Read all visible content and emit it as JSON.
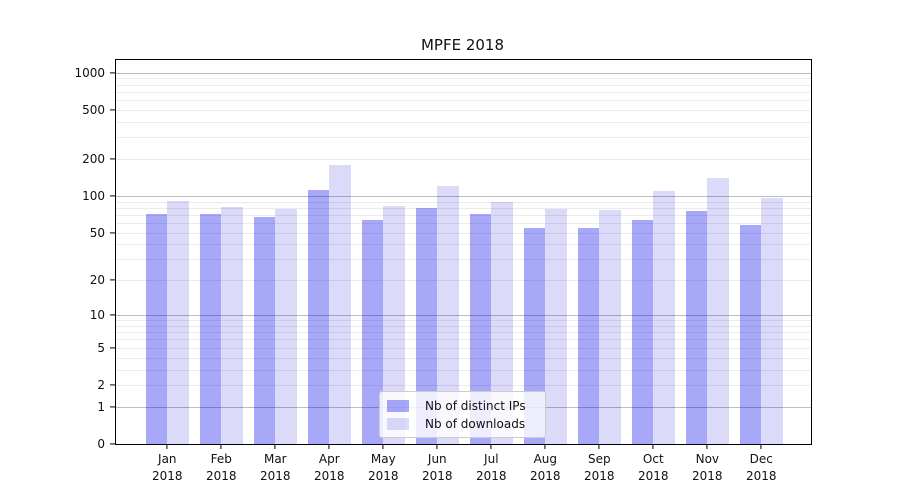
{
  "chart_data": {
    "type": "bar",
    "title": "MPFE 2018",
    "y_scale": "log1p",
    "y_ticks": [
      0,
      1,
      2,
      5,
      10,
      20,
      50,
      100,
      200,
      500,
      1000
    ],
    "ylim": [
      0,
      1300
    ],
    "grid": "both",
    "legend_position": "lower-center",
    "x_tick_year": "2018",
    "months": [
      "Jan",
      "Feb",
      "Mar",
      "Apr",
      "May",
      "Jun",
      "Jul",
      "Aug",
      "Sep",
      "Oct",
      "Nov",
      "Dec"
    ],
    "series": [
      {
        "name": "Nb of distinct IPs",
        "color": "rgba(0,0,235,0.34)",
        "values": [
          71,
          71,
          67,
          112,
          63,
          80,
          71,
          55,
          55,
          63,
          76,
          58
        ]
      },
      {
        "name": "Nb of downloads",
        "color": "rgba(0,0,215,0.14)",
        "values": [
          91,
          81,
          78,
          178,
          83,
          120,
          90,
          78,
          77,
          110,
          141,
          97
        ]
      }
    ],
    "colors": {
      "major_grid": "#bdbdbd",
      "minor_grid": "#ebebeb",
      "axis": "#000000",
      "text": "#111111"
    }
  }
}
